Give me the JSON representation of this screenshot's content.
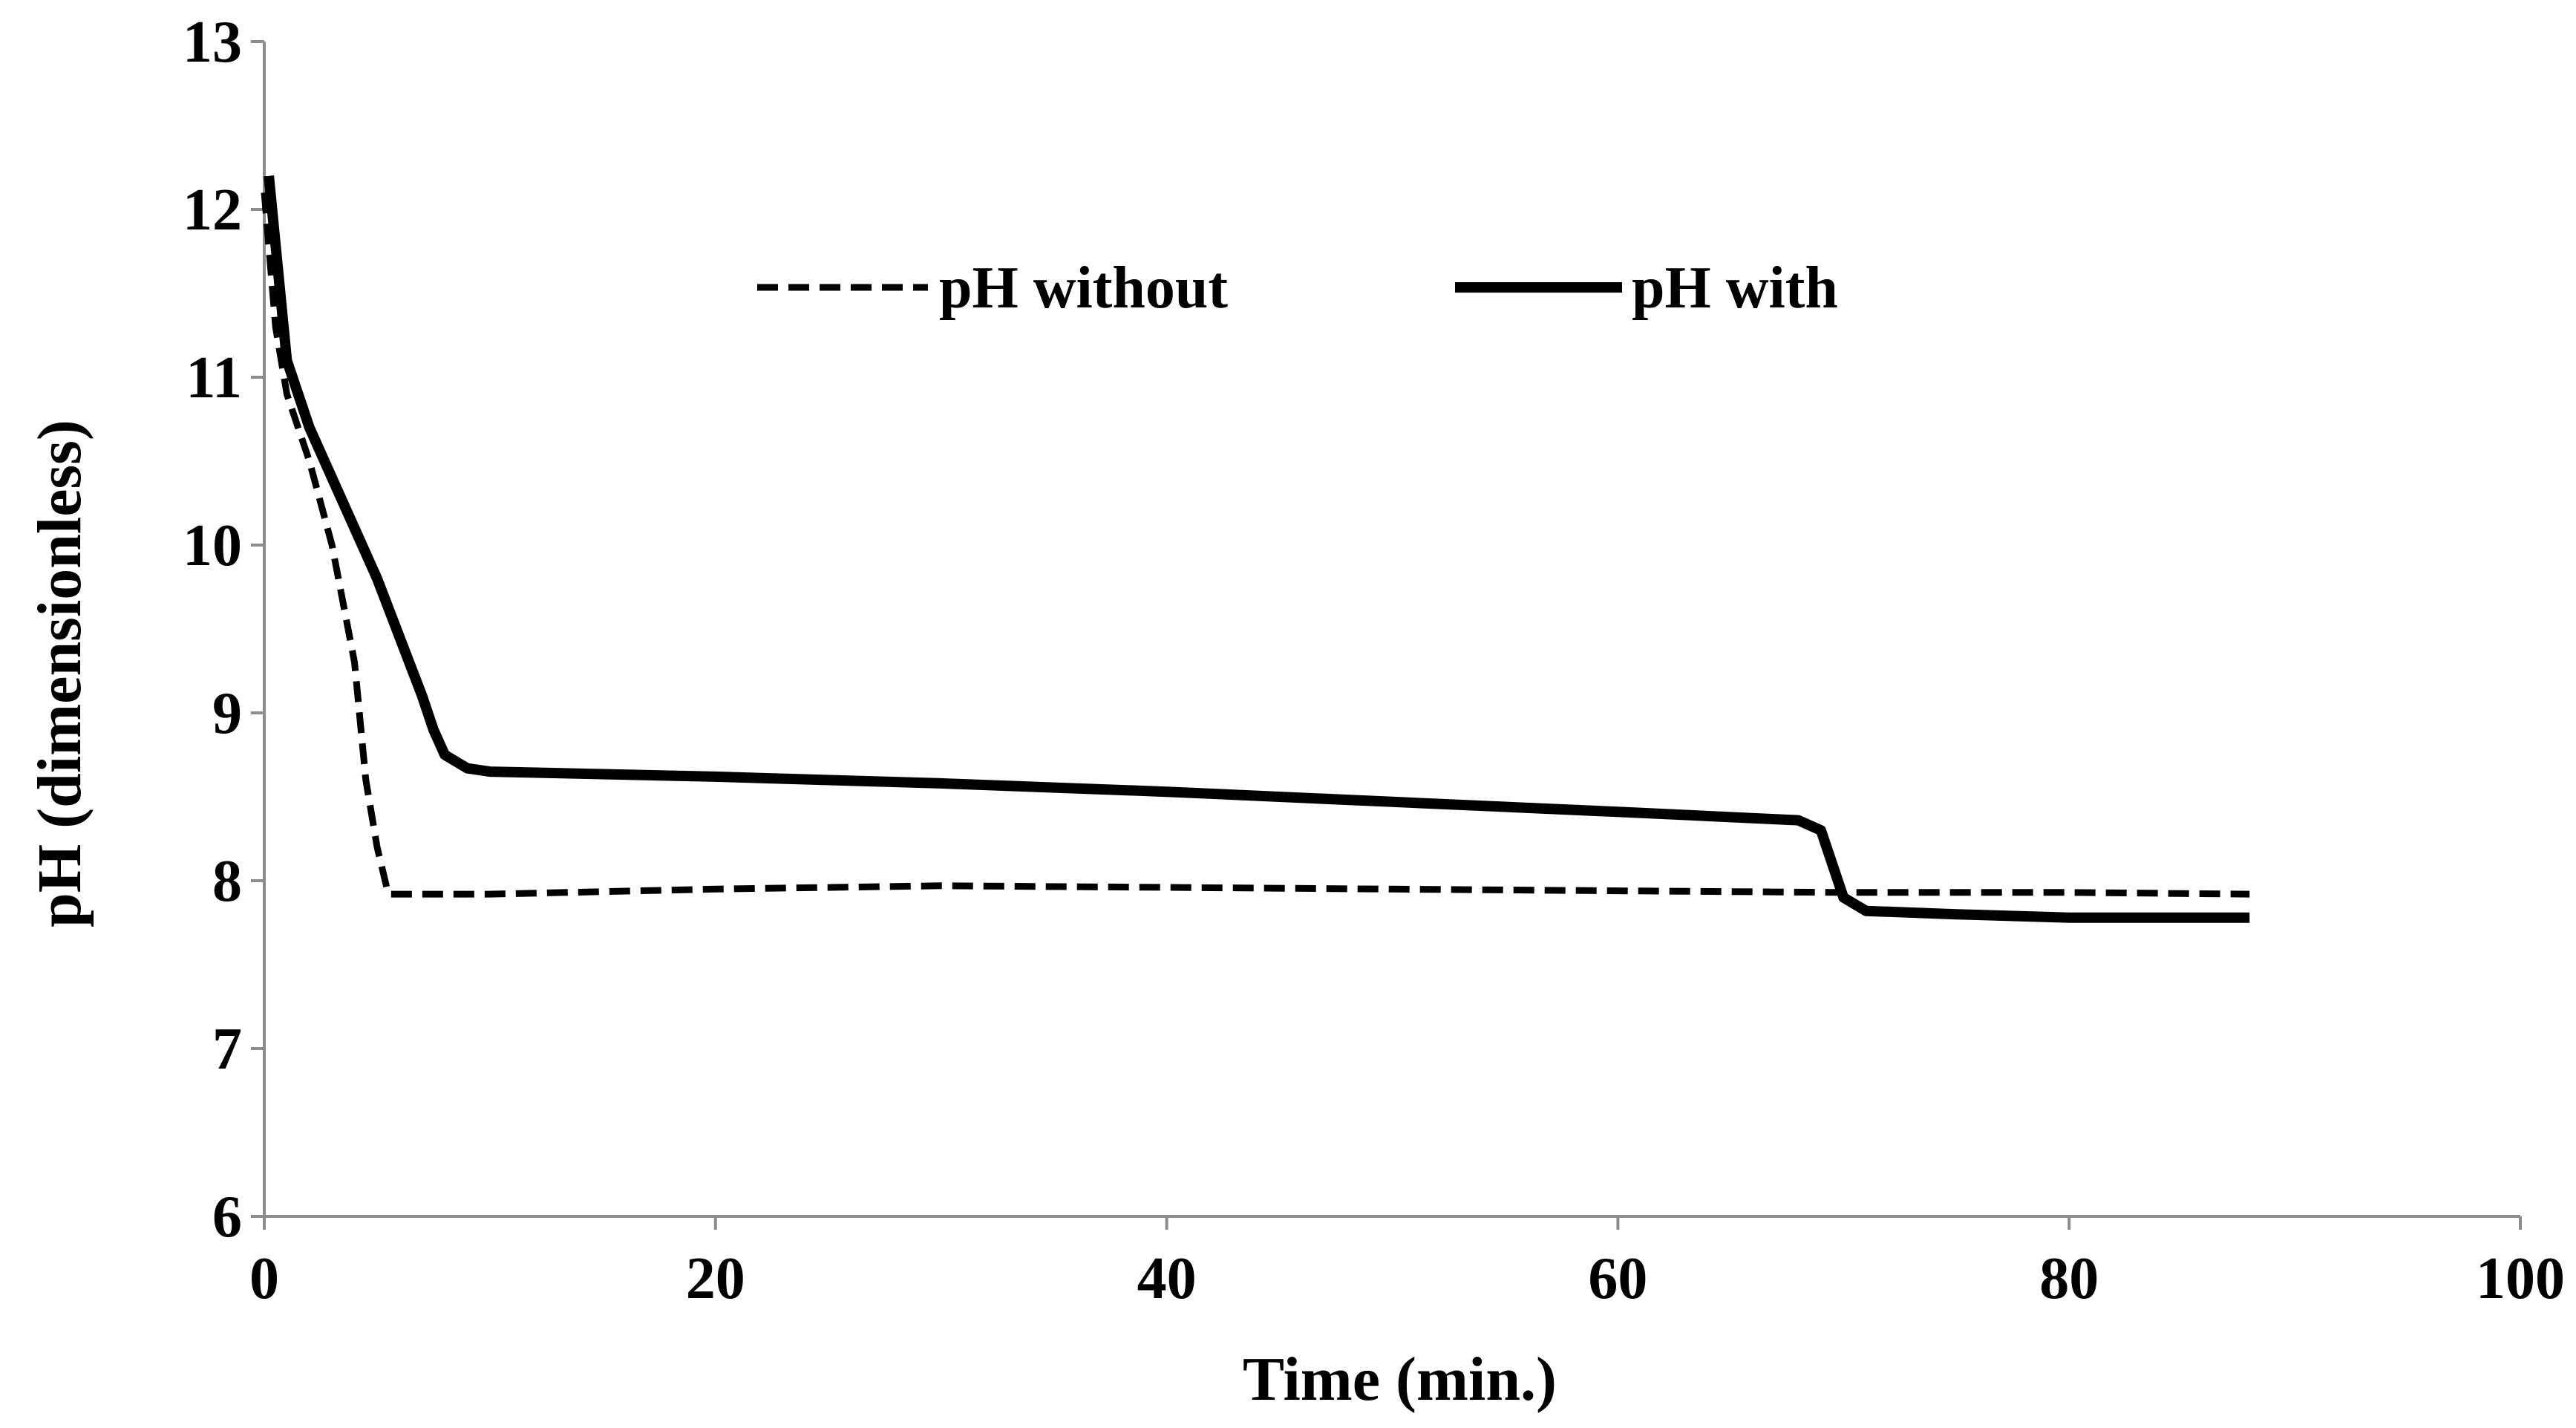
{
  "chart_data": {
    "type": "line",
    "title": "",
    "xlabel": "Time (min.)",
    "ylabel": "pH (dimensionless)",
    "xlim": [
      0,
      100
    ],
    "ylim": [
      6,
      13
    ],
    "x_ticks": [
      "0",
      "20",
      "40",
      "60",
      "80",
      "100"
    ],
    "y_ticks": [
      "6",
      "7",
      "8",
      "9",
      "10",
      "11",
      "12",
      "13"
    ],
    "grid": false,
    "legend_position": "top-center",
    "series": [
      {
        "name": "pH without",
        "style": "dashed",
        "color": "#000000",
        "points": [
          [
            0,
            12.1
          ],
          [
            0.5,
            11.3
          ],
          [
            1,
            10.9
          ],
          [
            2,
            10.5
          ],
          [
            3,
            10.0
          ],
          [
            4,
            9.3
          ],
          [
            4.5,
            8.6
          ],
          [
            5,
            8.2
          ],
          [
            5.5,
            7.92
          ],
          [
            6,
            7.92
          ],
          [
            10,
            7.92
          ],
          [
            20,
            7.95
          ],
          [
            30,
            7.97
          ],
          [
            40,
            7.96
          ],
          [
            50,
            7.95
          ],
          [
            60,
            7.94
          ],
          [
            70,
            7.93
          ],
          [
            80,
            7.93
          ],
          [
            88,
            7.92
          ]
        ]
      },
      {
        "name": "pH with",
        "style": "solid",
        "color": "#000000",
        "points": [
          [
            0.2,
            12.2
          ],
          [
            1,
            11.1
          ],
          [
            2,
            10.7
          ],
          [
            3,
            10.4
          ],
          [
            4,
            10.1
          ],
          [
            5,
            9.8
          ],
          [
            6,
            9.45
          ],
          [
            7,
            9.1
          ],
          [
            7.5,
            8.9
          ],
          [
            8,
            8.75
          ],
          [
            9,
            8.67
          ],
          [
            10,
            8.65
          ],
          [
            20,
            8.62
          ],
          [
            30,
            8.58
          ],
          [
            40,
            8.53
          ],
          [
            50,
            8.47
          ],
          [
            60,
            8.41
          ],
          [
            68,
            8.36
          ],
          [
            69,
            8.3
          ],
          [
            70,
            7.9
          ],
          [
            71,
            7.82
          ],
          [
            75,
            7.8
          ],
          [
            80,
            7.78
          ],
          [
            88,
            7.78
          ]
        ]
      }
    ]
  }
}
